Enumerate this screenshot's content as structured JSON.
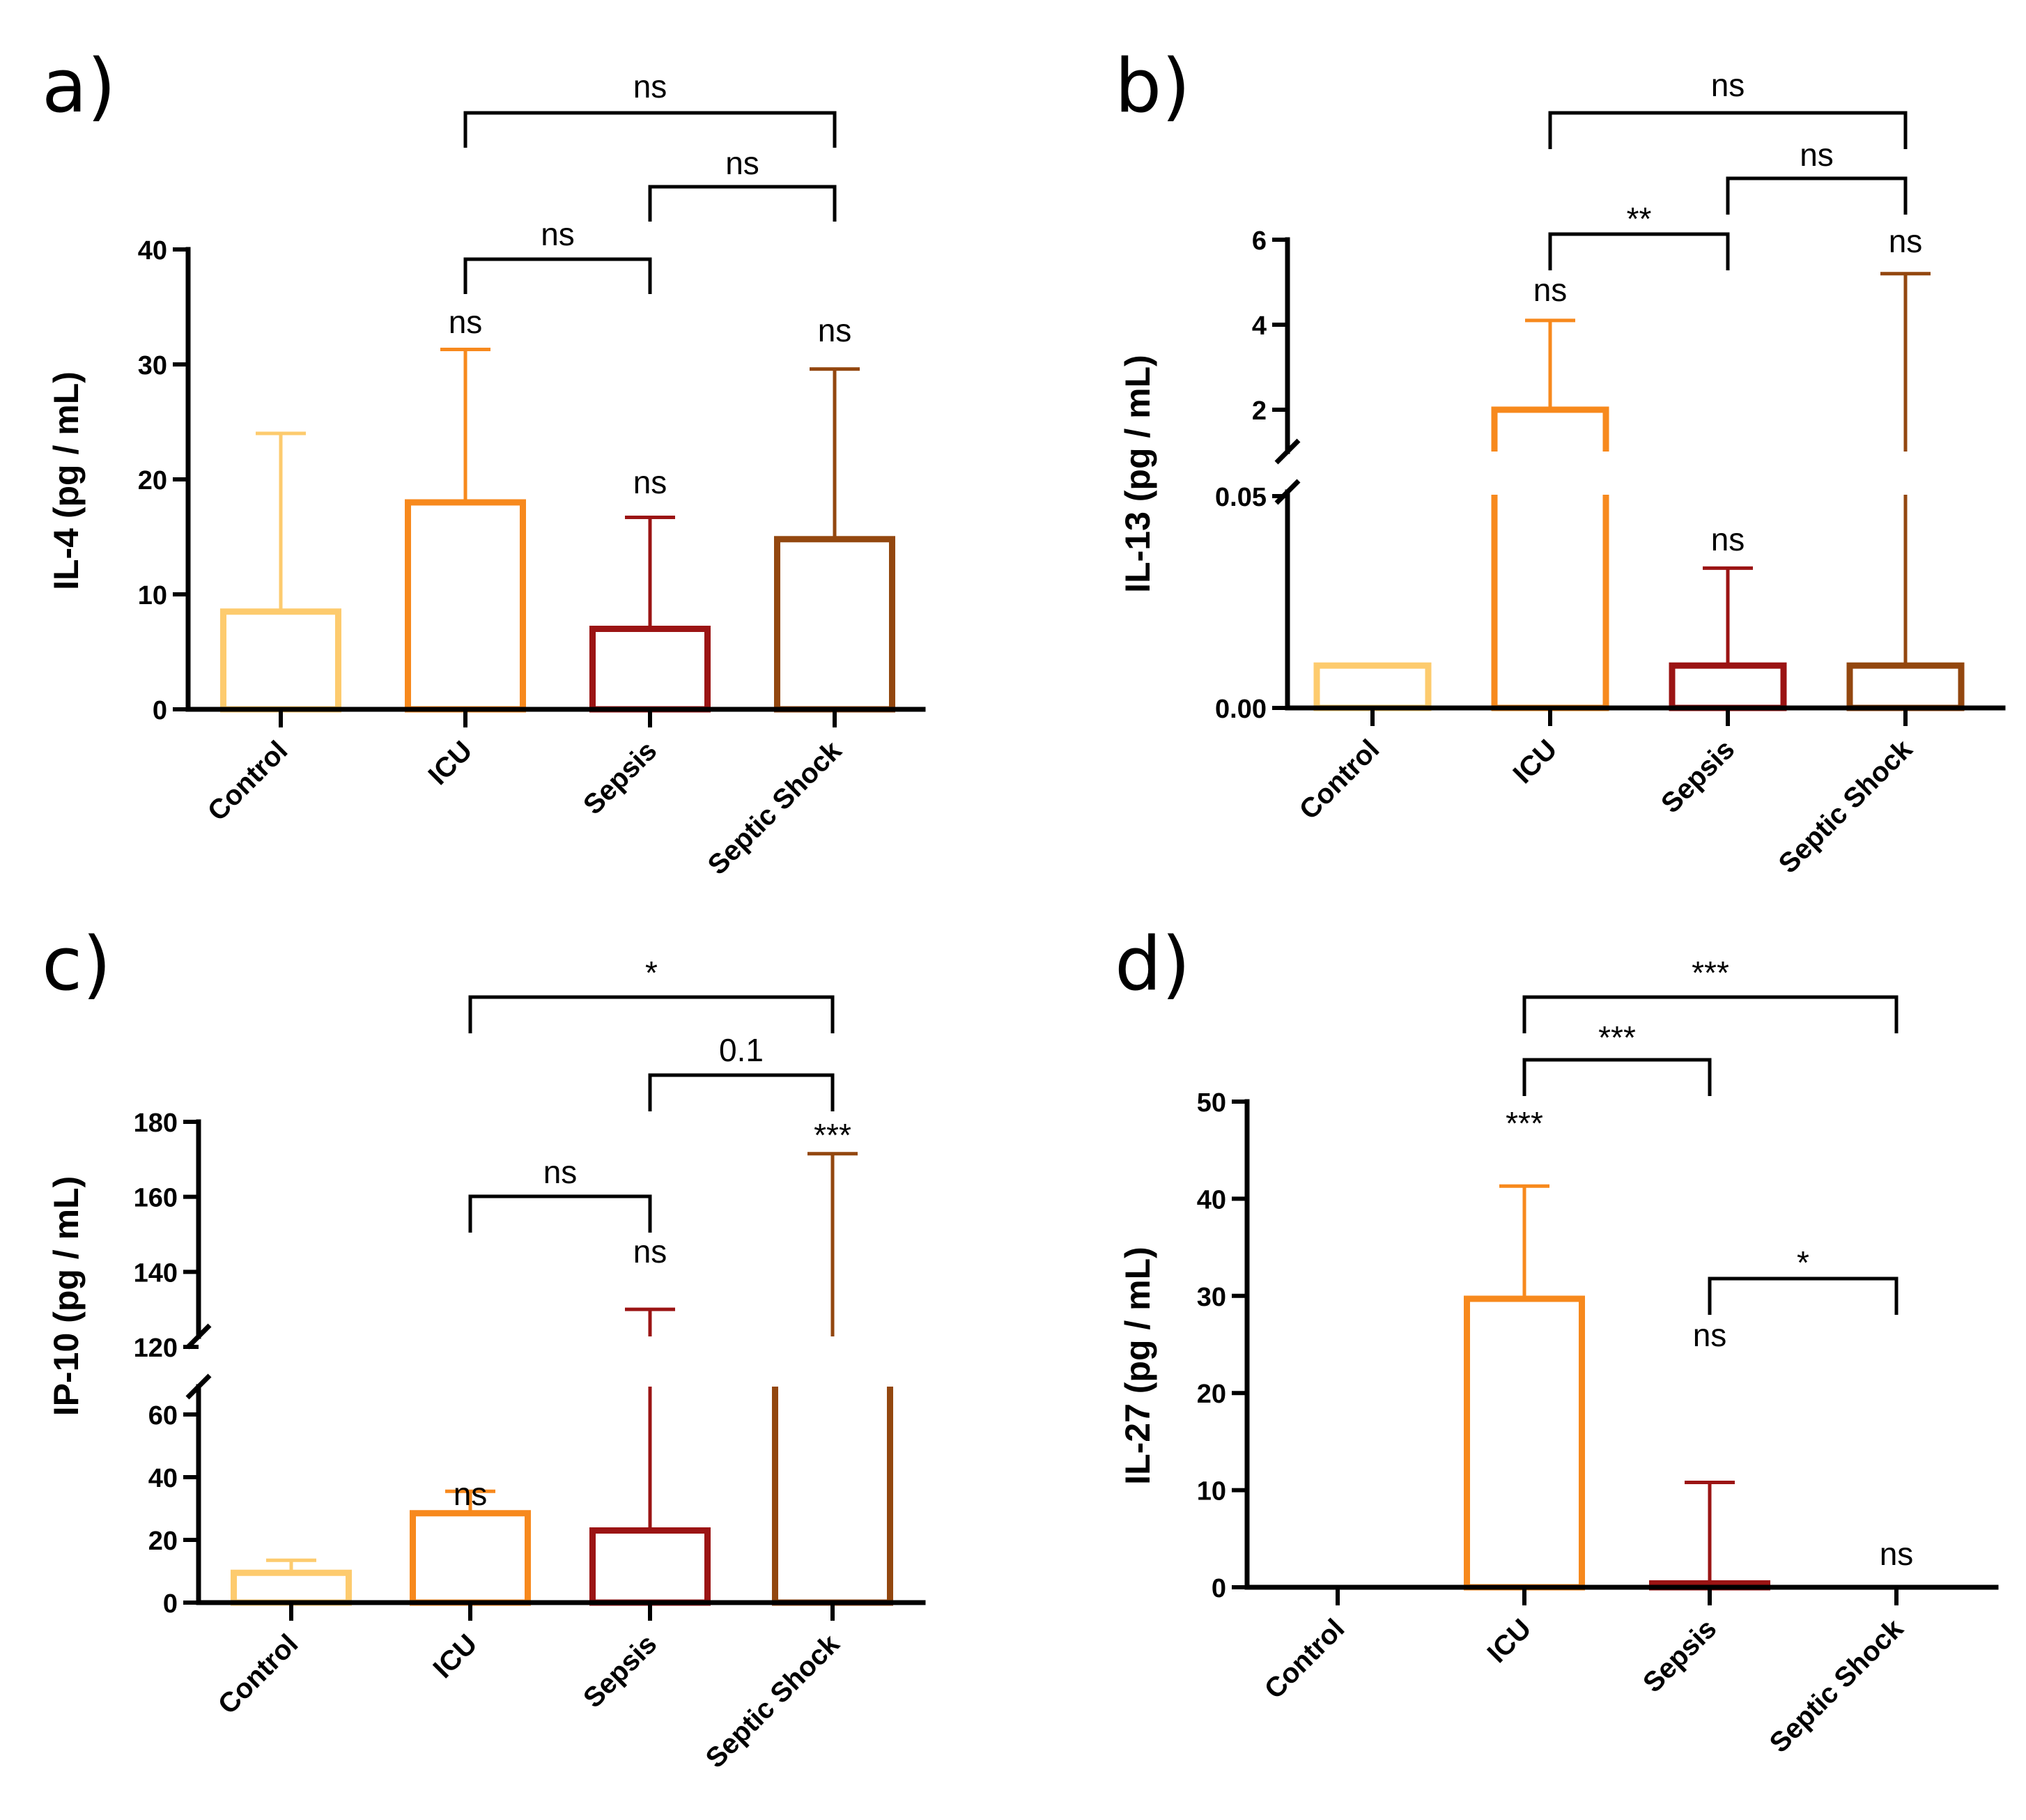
{
  "colors": {
    "Control": "#FDCB6E",
    "ICU": "#F7891D",
    "Sepsis": "#9B1414",
    "Septic Shock": "#93470F",
    "axis": "#000000"
  },
  "chart_data": [
    {
      "panel": "a)",
      "type": "bar",
      "ylabel": "IL-4 (pg / mL)",
      "categories": [
        "Control",
        "ICU",
        "Sepsis",
        "Septic Shock"
      ],
      "values": [
        8.5,
        18,
        7,
        14.8
      ],
      "error_upper": [
        24,
        31.3,
        16.7,
        29.6
      ],
      "ylim": [
        0,
        40
      ],
      "yticks": [
        0,
        10,
        20,
        30,
        40
      ],
      "ytick_labels": [
        "0",
        "10",
        "20",
        "30",
        "40"
      ],
      "bar_sig": [
        "",
        "ns",
        "ns",
        "ns"
      ],
      "comparisons": [
        {
          "from": "ICU",
          "to": "Sepsis",
          "label": "ns"
        },
        {
          "from": "Sepsis",
          "to": "Septic Shock",
          "label": "ns"
        },
        {
          "from": "ICU",
          "to": "Septic Shock",
          "label": "ns"
        }
      ]
    },
    {
      "panel": "b)",
      "type": "bar",
      "ylabel": "IL-13 (pg / mL)",
      "categories": [
        "Control",
        "ICU",
        "Sepsis",
        "Septic Shock"
      ],
      "values": [
        0.01,
        1.7,
        0.01,
        0.01
      ],
      "error_upper": [
        null,
        4.1,
        0.033,
        5.2
      ],
      "ylim_lower": [
        0,
        0.05
      ],
      "ylim_upper": [
        1,
        6
      ],
      "yticks": [
        0,
        0.05,
        2,
        4,
        6
      ],
      "ytick_labels": [
        "0.00",
        "0.05",
        "2",
        "4",
        "6"
      ],
      "bar_sig": [
        "",
        "ns",
        "ns",
        "ns"
      ],
      "comparisons": [
        {
          "from": "ICU",
          "to": "Sepsis",
          "label": "**"
        },
        {
          "from": "Sepsis",
          "to": "Septic Shock",
          "label": "ns"
        },
        {
          "from": "ICU",
          "to": "Septic Shock",
          "label": "ns"
        }
      ]
    },
    {
      "panel": "c)",
      "type": "bar",
      "ylabel": "IP-10 (pg / mL)",
      "categories": [
        "Control",
        "ICU",
        "Sepsis",
        "Septic Shock"
      ],
      "values": [
        9.5,
        28.5,
        23,
        62.5
      ],
      "error_upper": [
        13.5,
        35.5,
        130,
        171.5
      ],
      "ylim_lower": [
        0,
        65
      ],
      "ylim_upper": [
        120,
        180
      ],
      "yticks": [
        0,
        20,
        40,
        60,
        120,
        140,
        160,
        180
      ],
      "ytick_labels": [
        "0",
        "20",
        "40",
        "60",
        "120",
        "140",
        "160",
        "180"
      ],
      "bar_sig": [
        "",
        "ns",
        "ns",
        "***"
      ],
      "comparisons": [
        {
          "from": "ICU",
          "to": "Sepsis",
          "label": "ns"
        },
        {
          "from": "Sepsis",
          "to": "Septic Shock",
          "label": "0.1"
        },
        {
          "from": "ICU",
          "to": "Septic Shock",
          "label": "*"
        }
      ]
    },
    {
      "panel": "d)",
      "type": "bar",
      "ylabel": "IL-27 (pg / mL)",
      "categories": [
        "Control",
        "ICU",
        "Sepsis",
        "Septic Shock"
      ],
      "values": [
        0,
        29.7,
        0.4,
        0
      ],
      "error_upper": [
        null,
        41.3,
        10.8,
        null
      ],
      "ylim": [
        0,
        50
      ],
      "yticks": [
        0,
        10,
        20,
        30,
        40,
        50
      ],
      "ytick_labels": [
        "0",
        "10",
        "20",
        "30",
        "40",
        "50"
      ],
      "bar_sig": [
        "",
        "***",
        "ns",
        "ns"
      ],
      "comparisons": [
        {
          "from": "ICU",
          "to": "Sepsis",
          "label": "***"
        },
        {
          "from": "ICU",
          "to": "Septic Shock",
          "label": "***"
        },
        {
          "from": "Sepsis",
          "to": "Septic Shock",
          "label": "*"
        }
      ]
    }
  ]
}
